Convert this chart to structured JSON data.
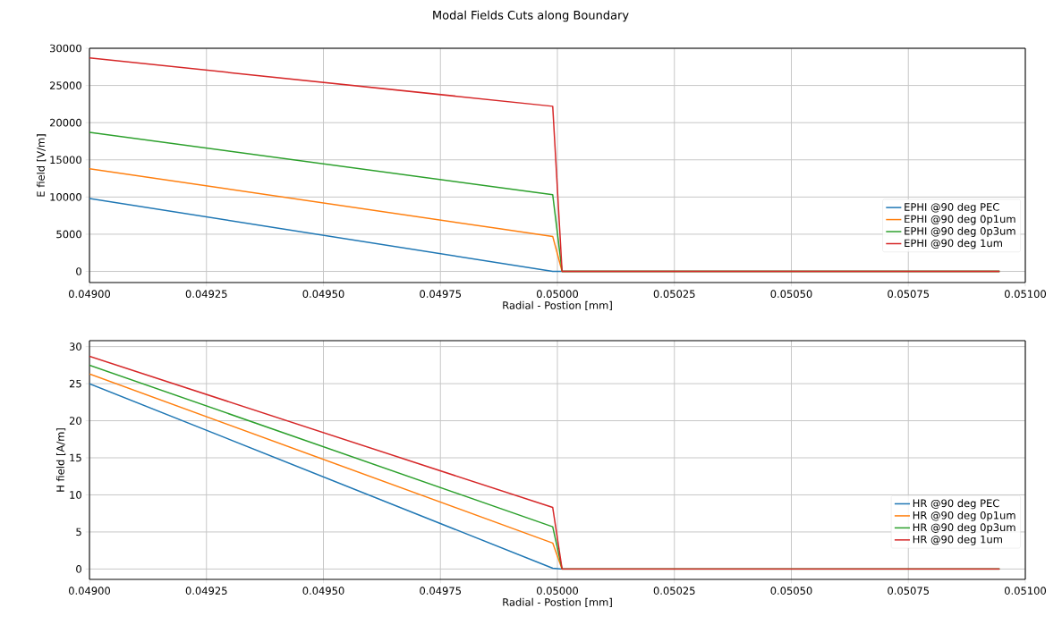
{
  "chart_data": [
    {
      "type": "line",
      "title": "Modal Fields Cuts along Boundary",
      "xlabel": "Radial - Postion [mm]",
      "ylabel": "E field [V/m]",
      "x": [
        0.049,
        0.04999,
        0.05001,
        0.050945
      ],
      "series": [
        {
          "name": "EPHI @90 deg PEC",
          "color": "#1f77b4",
          "values": [
            9800,
            0,
            0,
            0
          ]
        },
        {
          "name": "EPHI @90 deg 0p1um",
          "color": "#ff7f0e",
          "values": [
            13800,
            4700,
            0,
            0
          ]
        },
        {
          "name": "EPHI @90 deg 0p3um",
          "color": "#2ca02c",
          "values": [
            18700,
            10300,
            0,
            0
          ]
        },
        {
          "name": "EPHI @90 deg 1um",
          "color": "#d62728",
          "values": [
            28700,
            22200,
            0,
            0
          ]
        }
      ],
      "xlim": [
        0.049,
        0.051
      ],
      "ylim": [
        -1500,
        30000
      ],
      "xticks": [
        {
          "value": 0.049,
          "label": "0.04900"
        },
        {
          "value": 0.04925,
          "label": "0.04925"
        },
        {
          "value": 0.0495,
          "label": "0.04950"
        },
        {
          "value": 0.04975,
          "label": "0.04975"
        },
        {
          "value": 0.05,
          "label": "0.05000"
        },
        {
          "value": 0.05025,
          "label": "0.05025"
        },
        {
          "value": 0.0505,
          "label": "0.05050"
        },
        {
          "value": 0.05075,
          "label": "0.05075"
        },
        {
          "value": 0.051,
          "label": "0.05100"
        }
      ],
      "yticks": [
        0,
        5000,
        10000,
        15000,
        20000,
        25000,
        30000
      ],
      "grid": true,
      "legend": "bottom right"
    },
    {
      "type": "line",
      "xlabel": "Radial - Postion [mm]",
      "ylabel": "H field [A/m]",
      "x": [
        0.049,
        0.04999,
        0.05001,
        0.050945
      ],
      "series": [
        {
          "name": "HR   @90 deg PEC",
          "color": "#1f77b4",
          "values": [
            25.0,
            0.1,
            0,
            0
          ]
        },
        {
          "name": "HR   @90 deg 0p1um",
          "color": "#ff7f0e",
          "values": [
            26.3,
            3.5,
            0,
            0
          ]
        },
        {
          "name": "HR   @90 deg 0p3um",
          "color": "#2ca02c",
          "values": [
            27.5,
            5.7,
            0,
            0
          ]
        },
        {
          "name": "HR   @90 deg 1um",
          "color": "#d62728",
          "values": [
            28.7,
            8.3,
            0,
            0
          ]
        }
      ],
      "xlim": [
        0.049,
        0.051
      ],
      "ylim": [
        -1.4,
        30.8
      ],
      "xticks": [
        {
          "value": 0.049,
          "label": "0.04900"
        },
        {
          "value": 0.04925,
          "label": "0.04925"
        },
        {
          "value": 0.0495,
          "label": "0.04950"
        },
        {
          "value": 0.04975,
          "label": "0.04975"
        },
        {
          "value": 0.05,
          "label": "0.05000"
        },
        {
          "value": 0.05025,
          "label": "0.05025"
        },
        {
          "value": 0.0505,
          "label": "0.05050"
        },
        {
          "value": 0.05075,
          "label": "0.05075"
        },
        {
          "value": 0.051,
          "label": "0.05100"
        }
      ],
      "yticks": [
        0,
        5,
        10,
        15,
        20,
        25,
        30
      ],
      "grid": true,
      "legend": "bottom right"
    }
  ]
}
